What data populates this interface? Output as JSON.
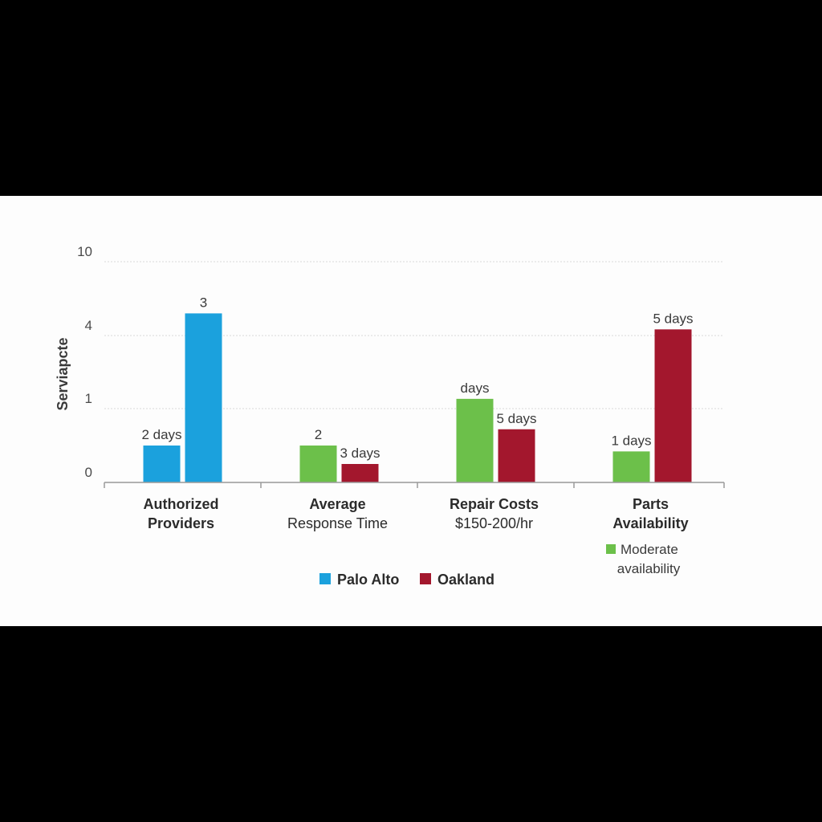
{
  "chart_data": {
    "type": "bar",
    "ylabel": "Serviapcte",
    "y_ticks": [
      "10",
      "4",
      "1",
      "0"
    ],
    "grid": true,
    "categories": [
      {
        "title_lines": [
          "Authorized",
          "Providers"
        ],
        "subtitle": ""
      },
      {
        "title_lines": [
          "Average"
        ],
        "subtitle": "Response Time"
      },
      {
        "title_lines": [
          "Repair Costs"
        ],
        "subtitle": "$150-200/hr"
      },
      {
        "title_lines": [
          "Parts",
          "Availability"
        ],
        "subtitle": ""
      }
    ],
    "series": [
      {
        "name": "Palo Alto",
        "color": "#1ba1dd"
      },
      {
        "name": "Oakland",
        "color": "#a3172d"
      }
    ],
    "bars": [
      {
        "category": 0,
        "color": "#1ba1dd",
        "value": 0.5,
        "label": "2 days"
      },
      {
        "category": 0,
        "color": "#1ba1dd",
        "value": 5.8,
        "label": "3"
      },
      {
        "category": 1,
        "color": "#6cc04a",
        "value": 0.5,
        "label": "2"
      },
      {
        "category": 1,
        "color": "#a3172d",
        "value": 0.25,
        "label": "3 days"
      },
      {
        "category": 2,
        "color": "#6cc04a",
        "value": 1.4,
        "label": "days"
      },
      {
        "category": 2,
        "color": "#a3172d",
        "value": 0.72,
        "label": "5 days"
      },
      {
        "category": 3,
        "color": "#6cc04a",
        "value": 0.42,
        "label": "1 days"
      },
      {
        "category": 3,
        "color": "#a3172d",
        "value": 4.5,
        "label": "5 days"
      }
    ],
    "note": {
      "color": "#6cc04a",
      "lines": [
        "Moderate",
        "availability"
      ]
    },
    "legend_position": "bottom-center"
  }
}
